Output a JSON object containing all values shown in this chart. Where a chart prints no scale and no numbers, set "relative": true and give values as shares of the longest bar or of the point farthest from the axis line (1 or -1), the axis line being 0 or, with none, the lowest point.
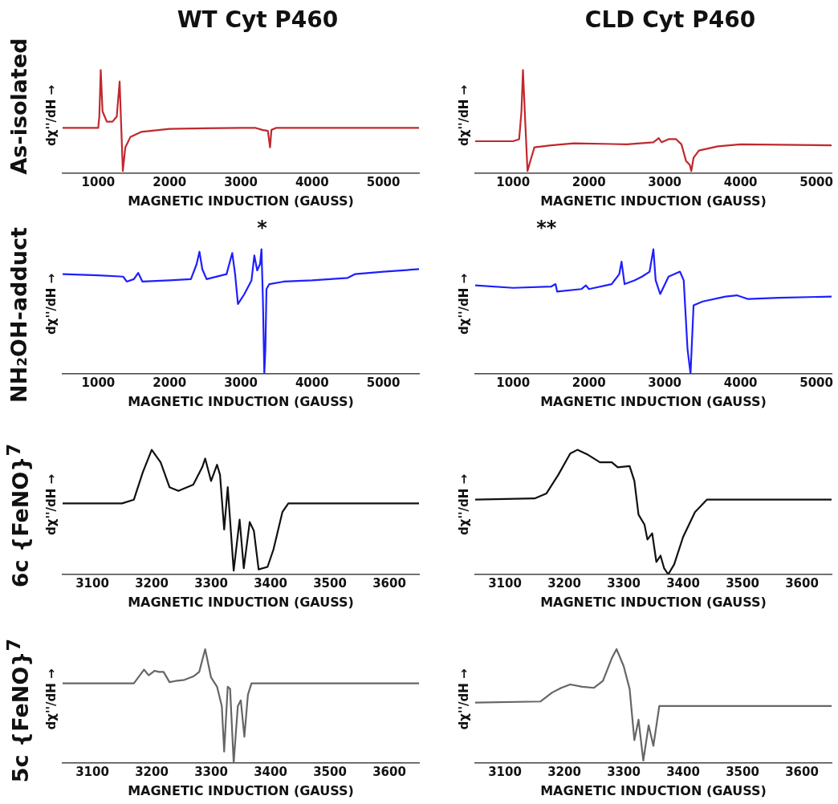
{
  "chart_data": [
    {
      "type": "line",
      "title": "WT Cyt P460",
      "subtitle": "As-isolated",
      "xlabel": "MAGNETIC INDUCTION (GAUSS)",
      "ylabel": "dχ''/dH →",
      "relative": true,
      "xlim": [
        500,
        5500
      ],
      "xticks": [
        1000,
        2000,
        3000,
        4000,
        5000
      ],
      "series": [
        {
          "color": "#c0282d",
          "x": [
            500,
            1000,
            1015,
            1035,
            1060,
            1120,
            1200,
            1260,
            1300,
            1320,
            1345,
            1380,
            1450,
            1600,
            2000,
            3000,
            3200,
            3300,
            3380,
            3410,
            3430,
            3500,
            4500,
            5500
          ],
          "values": [
            0.44,
            0.44,
            0.55,
            1.0,
            0.6,
            0.5,
            0.5,
            0.55,
            0.89,
            0.5,
            0.02,
            0.25,
            0.35,
            0.4,
            0.43,
            0.44,
            0.44,
            0.42,
            0.41,
            0.25,
            0.42,
            0.44,
            0.44,
            0.44
          ]
        }
      ]
    },
    {
      "type": "line",
      "title": "CLD Cyt P460",
      "xlabel": "MAGNETIC INDUCTION (GAUSS)",
      "ylabel": "dχ''/dH →",
      "relative": true,
      "xlim": [
        500,
        5200
      ],
      "xticks": [
        1000,
        2000,
        3000,
        4000,
        5000
      ],
      "series": [
        {
          "color": "#c0282d",
          "x": [
            500,
            1000,
            1080,
            1110,
            1130,
            1160,
            1190,
            1220,
            1280,
            1500,
            1800,
            2500,
            2850,
            2920,
            2960,
            3050,
            3150,
            3220,
            3280,
            3330,
            3350,
            3380,
            3450,
            3700,
            4000,
            5200
          ],
          "values": [
            0.31,
            0.31,
            0.33,
            0.6,
            1.0,
            0.5,
            0.02,
            0.1,
            0.25,
            0.27,
            0.29,
            0.28,
            0.3,
            0.34,
            0.3,
            0.33,
            0.33,
            0.28,
            0.12,
            0.08,
            0.02,
            0.15,
            0.22,
            0.26,
            0.28,
            0.27
          ]
        }
      ]
    },
    {
      "type": "line",
      "subtitle": "NH₂OH-adduct",
      "xlabel": "MAGNETIC INDUCTION (GAUSS)",
      "ylabel": "dχ''/dH →",
      "relative": true,
      "xlim": [
        500,
        5500
      ],
      "xticks": [
        1000,
        2000,
        3000,
        4000,
        5000
      ],
      "annotations": [
        "*"
      ],
      "series": [
        {
          "color": "#1f1fff",
          "x": [
            500,
            1000,
            1350,
            1400,
            1500,
            1560,
            1620,
            2000,
            2300,
            2380,
            2420,
            2460,
            2520,
            2800,
            2880,
            2920,
            2960,
            3050,
            3150,
            3190,
            3230,
            3270,
            3290,
            3310,
            3330,
            3345,
            3360,
            3400,
            3600,
            4000,
            4500,
            4600,
            5000,
            5500
          ],
          "values": [
            0.8,
            0.79,
            0.78,
            0.74,
            0.76,
            0.81,
            0.74,
            0.75,
            0.76,
            0.88,
            0.98,
            0.84,
            0.76,
            0.8,
            0.97,
            0.8,
            0.56,
            0.64,
            0.75,
            0.95,
            0.83,
            0.88,
            1.0,
            0.6,
            0,
            0.2,
            0.68,
            0.72,
            0.74,
            0.75,
            0.77,
            0.8,
            0.82,
            0.84
          ]
        }
      ]
    },
    {
      "type": "line",
      "xlabel": "MAGNETIC INDUCTION (GAUSS)",
      "ylabel": "dχ''/dH →",
      "relative": true,
      "xlim": [
        500,
        5200
      ],
      "xticks": [
        1000,
        2000,
        3000,
        4000,
        5000
      ],
      "annotations": [
        "**"
      ],
      "series": [
        {
          "color": "#1f1fff",
          "x": [
            500,
            1000,
            1500,
            1560,
            1580,
            1900,
            1960,
            2000,
            2300,
            2400,
            2430,
            2470,
            2600,
            2700,
            2800,
            2850,
            2880,
            2940,
            3050,
            3200,
            3250,
            3300,
            3340,
            3380,
            3500,
            3800,
            3950,
            4100,
            4500,
            5200
          ],
          "values": [
            0.71,
            0.69,
            0.7,
            0.72,
            0.66,
            0.68,
            0.71,
            0.68,
            0.72,
            0.8,
            0.9,
            0.72,
            0.75,
            0.78,
            0.82,
            1.0,
            0.75,
            0.64,
            0.78,
            0.82,
            0.75,
            0.2,
            0,
            0.55,
            0.58,
            0.62,
            0.63,
            0.6,
            0.61,
            0.62
          ]
        }
      ]
    },
    {
      "type": "line",
      "subtitle": "6c {FeNO}$^{7}$",
      "xlabel": "MAGNETIC INDUCTION (GAUSS)",
      "ylabel": "dχ''/dH →",
      "relative": true,
      "xlim": [
        3050,
        3650
      ],
      "xticks": [
        3100,
        3200,
        3300,
        3400,
        3500,
        3600
      ],
      "series": [
        {
          "color": "#111111",
          "x": [
            3050,
            3150,
            3170,
            3185,
            3200,
            3215,
            3230,
            3245,
            3270,
            3285,
            3290,
            3300,
            3310,
            3315,
            3322,
            3328,
            3338,
            3348,
            3355,
            3365,
            3372,
            3380,
            3395,
            3405,
            3420,
            3430,
            3500,
            3650
          ],
          "values": [
            0.57,
            0.57,
            0.6,
            0.82,
            1.0,
            0.9,
            0.7,
            0.67,
            0.72,
            0.86,
            0.93,
            0.75,
            0.88,
            0.8,
            0.36,
            0.7,
            0.03,
            0.44,
            0.05,
            0.42,
            0.35,
            0.04,
            0.06,
            0.2,
            0.5,
            0.57,
            0.57,
            0.57
          ]
        }
      ]
    },
    {
      "type": "line",
      "xlabel": "MAGNETIC INDUCTION (GAUSS)",
      "ylabel": "dχ''/dH →",
      "relative": true,
      "xlim": [
        3050,
        3650
      ],
      "xticks": [
        3100,
        3200,
        3300,
        3400,
        3500,
        3600
      ],
      "series": [
        {
          "color": "#111111",
          "x": [
            3050,
            3150,
            3170,
            3190,
            3210,
            3222,
            3240,
            3260,
            3280,
            3290,
            3310,
            3318,
            3325,
            3335,
            3340,
            3348,
            3355,
            3362,
            3368,
            3375,
            3385,
            3400,
            3420,
            3440,
            3500,
            3650
          ],
          "values": [
            0.6,
            0.61,
            0.65,
            0.8,
            0.97,
            1.0,
            0.96,
            0.9,
            0.9,
            0.86,
            0.87,
            0.75,
            0.48,
            0.4,
            0.28,
            0.33,
            0.1,
            0.15,
            0.05,
            0,
            0.08,
            0.3,
            0.5,
            0.6,
            0.6,
            0.6
          ]
        }
      ]
    },
    {
      "type": "line",
      "subtitle": "5c {FeNO}$^{7}$",
      "xlabel": "MAGNETIC INDUCTION (GAUSS)",
      "ylabel": "dχ''/dH →",
      "relative": true,
      "xlim": [
        3050,
        3650
      ],
      "xticks": [
        3100,
        3200,
        3300,
        3400,
        3500,
        3600
      ],
      "series": [
        {
          "color": "#666666",
          "x": [
            3050,
            3170,
            3180,
            3187,
            3195,
            3205,
            3212,
            3220,
            3230,
            3240,
            3255,
            3270,
            3280,
            3290,
            3300,
            3310,
            3318,
            3322,
            3328,
            3332,
            3338,
            3345,
            3350,
            3356,
            3362,
            3368,
            3650
          ],
          "values": [
            0.7,
            0.7,
            0.77,
            0.82,
            0.77,
            0.81,
            0.8,
            0.8,
            0.71,
            0.72,
            0.73,
            0.76,
            0.8,
            1.0,
            0.75,
            0.67,
            0.5,
            0.1,
            0.67,
            0.65,
            0,
            0.5,
            0.55,
            0.23,
            0.6,
            0.7,
            0.7
          ]
        }
      ]
    },
    {
      "type": "line",
      "xlabel": "MAGNETIC INDUCTION (GAUSS)",
      "ylabel": "dχ''/dH →",
      "relative": true,
      "xlim": [
        3050,
        3650
      ],
      "xticks": [
        3100,
        3200,
        3300,
        3400,
        3500,
        3600
      ],
      "series": [
        {
          "color": "#666666",
          "x": [
            3050,
            3160,
            3180,
            3195,
            3210,
            3230,
            3250,
            3265,
            3280,
            3288,
            3300,
            3310,
            3318,
            3325,
            3333,
            3342,
            3350,
            3360,
            3400,
            3650
          ],
          "values": [
            0.53,
            0.54,
            0.62,
            0.66,
            0.69,
            0.67,
            0.66,
            0.72,
            0.92,
            1.0,
            0.85,
            0.65,
            0.2,
            0.38,
            0.02,
            0.33,
            0.15,
            0.5,
            0.5,
            0.5
          ]
        }
      ]
    }
  ]
}
